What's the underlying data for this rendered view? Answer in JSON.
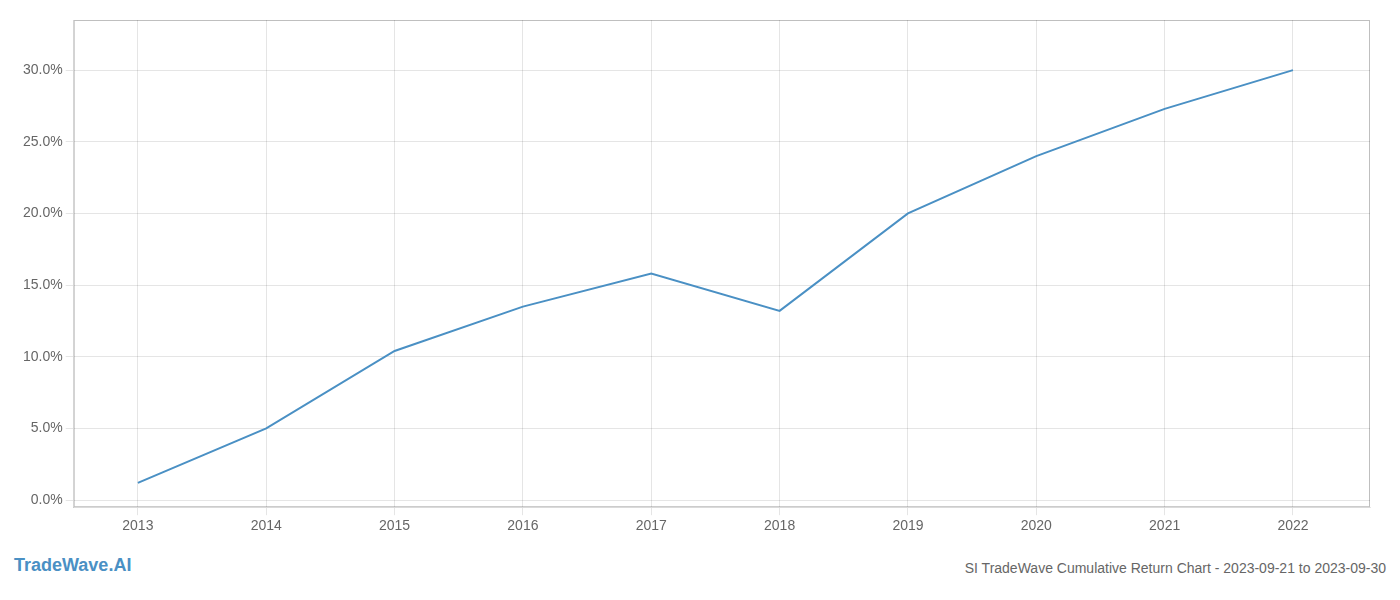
{
  "chart_data": {
    "type": "line",
    "title": "SI TradeWave Cumulative Return Chart - 2023-09-21 to 2023-09-30",
    "annotations": [
      "TradeWave.AI"
    ],
    "x": [
      2013,
      2014,
      2015,
      2016,
      2017,
      2018,
      2019,
      2020,
      2021,
      2022
    ],
    "values": [
      0.012,
      0.05,
      0.104,
      0.135,
      0.158,
      0.132,
      0.2,
      0.24,
      0.273,
      0.3
    ],
    "color": "#4a90c4",
    "xlim": [
      2012.5,
      2022.6
    ],
    "xticks": [
      2013,
      2014,
      2015,
      2016,
      2017,
      2018,
      2019,
      2020,
      2021,
      2022
    ],
    "ylim": [
      -0.005,
      0.335
    ],
    "yticks": [
      {
        "value": 0.0,
        "label": "0.0%"
      },
      {
        "value": 0.05,
        "label": "5.0%"
      },
      {
        "value": 0.1,
        "label": "10.0%"
      },
      {
        "value": 0.15,
        "label": "15.0%"
      },
      {
        "value": 0.2,
        "label": "20.0%"
      },
      {
        "value": 0.25,
        "label": "25.0%"
      },
      {
        "value": 0.3,
        "label": "30.0%"
      }
    ],
    "grid": true
  }
}
